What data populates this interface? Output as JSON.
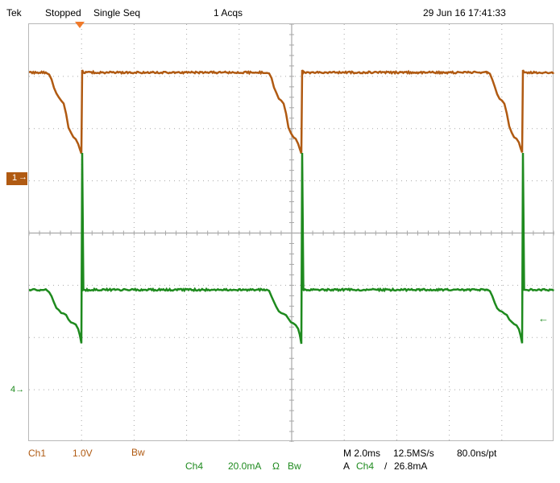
{
  "header": {
    "brand": "Tek",
    "status": "Stopped",
    "mode": "Single Seq",
    "acqs": "1 Acqs",
    "timestamp": "29 Jun 16 17:41:33"
  },
  "colors": {
    "ch1": "#b05a12",
    "ch4": "#1e8a1e",
    "trigger": "#f07a2a",
    "grid": "#a8a8a8"
  },
  "markers": {
    "ch1_label": "1",
    "ch4_label": "4",
    "trigger_level_icon": "left-arrow-icon"
  },
  "footer": {
    "ch1_name": "Ch1",
    "ch1_scale": "1.0V",
    "ch1_bw": "Bw",
    "ch4_name": "Ch4",
    "ch4_scale": "20.0mA",
    "ch4_coupling": "Ω",
    "ch4_bw": "Bw",
    "timebase": "M 2.0ms",
    "sample_rate": "12.5MS/s",
    "resolution": "80.0ns/pt",
    "trigger_label": "A",
    "trigger_source": "Ch4",
    "trigger_slope": "/",
    "trigger_level": "26.8mA"
  }
}
